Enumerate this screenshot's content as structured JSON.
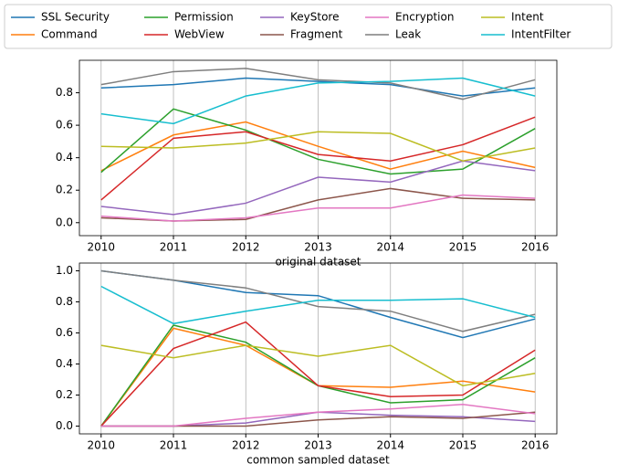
{
  "chart_data": [
    {
      "type": "line",
      "xlabel": "original dataset",
      "x": [
        2010,
        2011,
        2012,
        2013,
        2014,
        2015,
        2016
      ],
      "xlim": [
        2009.7,
        2016.3
      ],
      "xticks": [
        2010,
        2011,
        2012,
        2013,
        2014,
        2015,
        2016
      ],
      "ylim": [
        -0.08,
        1.0
      ],
      "yticks": [
        {
          "value": 0,
          "label": "0.0"
        },
        0.2,
        0.4,
        0.6,
        0.8
      ],
      "grid": "x",
      "series": [
        {
          "name": "SSL Security",
          "color": "#1f77b4",
          "values": [
            0.83,
            0.85,
            0.89,
            0.87,
            0.85,
            0.78,
            0.83
          ]
        },
        {
          "name": "Command",
          "color": "#ff7f0e",
          "values": [
            0.32,
            0.54,
            0.62,
            0.47,
            0.33,
            0.44,
            0.34
          ]
        },
        {
          "name": "Permission",
          "color": "#2ca02c",
          "values": [
            0.31,
            0.7,
            0.57,
            0.39,
            0.3,
            0.33,
            0.58
          ]
        },
        {
          "name": "WebView",
          "color": "#d62728",
          "values": [
            0.14,
            0.52,
            0.56,
            0.42,
            0.38,
            0.48,
            0.65
          ]
        },
        {
          "name": "KeyStore",
          "color": "#9467bd",
          "values": [
            0.1,
            0.05,
            0.12,
            0.28,
            0.25,
            0.38,
            0.32
          ]
        },
        {
          "name": "Fragment",
          "color": "#8c564b",
          "values": [
            0.03,
            0.01,
            0.02,
            0.14,
            0.21,
            0.15,
            0.14
          ]
        },
        {
          "name": "Encryption",
          "color": "#e377c2",
          "values": [
            0.04,
            0.01,
            0.03,
            0.09,
            0.09,
            0.17,
            0.15
          ]
        },
        {
          "name": "Leak",
          "color": "#7f7f7f",
          "values": [
            0.85,
            0.93,
            0.95,
            0.88,
            0.86,
            0.76,
            0.88
          ]
        },
        {
          "name": "Intent",
          "color": "#bcbd22",
          "values": [
            0.47,
            0.46,
            0.49,
            0.56,
            0.55,
            0.38,
            0.46
          ]
        },
        {
          "name": "IntentFilter",
          "color": "#17becf",
          "values": [
            0.67,
            0.61,
            0.78,
            0.86,
            0.87,
            0.89,
            0.78
          ]
        }
      ]
    },
    {
      "type": "line",
      "xlabel": "common sampled dataset",
      "x": [
        2010,
        2011,
        2012,
        2013,
        2014,
        2015,
        2016
      ],
      "xlim": [
        2009.7,
        2016.3
      ],
      "xticks": [
        2010,
        2011,
        2012,
        2013,
        2014,
        2015,
        2016
      ],
      "ylim": [
        -0.05,
        1.05
      ],
      "yticks": [
        {
          "value": 0,
          "label": "0.0"
        },
        0.2,
        0.4,
        0.6,
        0.8,
        {
          "value": 1,
          "label": "1.0"
        }
      ],
      "grid": "x",
      "series": [
        {
          "color": "#1f77b4",
          "values": [
            1.0,
            0.94,
            0.86,
            0.84,
            0.7,
            0.57,
            0.69
          ]
        },
        {
          "color": "#ff7f0e",
          "values": [
            0,
            0.63,
            0.52,
            0.26,
            0.25,
            0.29,
            0.22
          ]
        },
        {
          "color": "#2ca02c",
          "values": [
            0,
            0.65,
            0.54,
            0.26,
            0.15,
            0.17,
            0.44
          ]
        },
        {
          "color": "#d62728",
          "values": [
            0,
            0.5,
            0.67,
            0.26,
            0.19,
            0.2,
            0.49
          ]
        },
        {
          "color": "#9467bd",
          "values": [
            0,
            0,
            0.02,
            0.09,
            0.07,
            0.06,
            0.03
          ]
        },
        {
          "color": "#8c564b",
          "values": [
            0,
            0,
            0,
            0.04,
            0.06,
            0.05,
            0.09
          ]
        },
        {
          "color": "#e377c2",
          "values": [
            0,
            0,
            0.05,
            0.09,
            0.11,
            0.14,
            0.08
          ]
        },
        {
          "color": "#7f7f7f",
          "values": [
            1.0,
            0.94,
            0.89,
            0.77,
            0.74,
            0.61,
            0.72
          ]
        },
        {
          "color": "#bcbd22",
          "values": [
            0.52,
            0.44,
            0.52,
            0.45,
            0.52,
            0.26,
            0.34
          ]
        },
        {
          "color": "#17becf",
          "values": [
            0.9,
            0.66,
            0.74,
            0.81,
            0.81,
            0.82,
            0.7
          ]
        }
      ]
    }
  ]
}
